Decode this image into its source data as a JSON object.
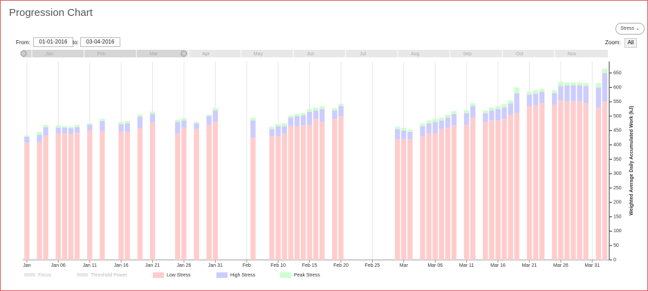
{
  "header": {
    "title": "Progression Chart",
    "menu": "Stress"
  },
  "controls": {
    "from_label": "From:",
    "from": "01-01-2016",
    "to_label": "to:",
    "to": "03-04-2016",
    "zoom_label": "Zoom:",
    "zoom": "All"
  },
  "navigator": {
    "labels": [
      "Jan",
      "Feb",
      "Mar",
      "Apr",
      "May",
      "Jun",
      "Jul",
      "Aug",
      "Sep",
      "Oct",
      "Nov"
    ]
  },
  "chart_data": {
    "type": "bar",
    "stacked": true,
    "y_label": "Weighted Average Daily Accumulated Work (kJ)",
    "x": [
      1,
      3,
      4,
      6,
      7,
      8,
      9,
      11,
      13,
      16,
      17,
      19,
      21,
      25,
      26,
      28,
      30,
      31,
      37,
      40,
      41,
      42,
      43,
      44,
      45,
      46,
      47,
      48,
      50,
      51,
      60,
      61,
      62,
      64,
      65,
      66,
      67,
      68,
      69,
      71,
      72,
      74,
      75,
      76,
      77,
      78,
      79,
      81,
      82,
      83,
      85,
      86,
      87,
      88,
      89,
      90,
      92,
      93
    ],
    "series": [
      {
        "name": "Low Stress",
        "color": "#ffcccc",
        "values": [
          408,
          410,
          432,
          440,
          440,
          438,
          442,
          450,
          448,
          447,
          445,
          458,
          478,
          440,
          460,
          455,
          470,
          480,
          425,
          430,
          430,
          440,
          465,
          465,
          468,
          470,
          490,
          480,
          490,
          500,
          420,
          420,
          420,
          430,
          440,
          440,
          455,
          460,
          468,
          470,
          495,
          480,
          485,
          485,
          490,
          505,
          510,
          535,
          538,
          545,
          540,
          555,
          552,
          552,
          552,
          545,
          530,
          550
        ]
      },
      {
        "name": "High Stress",
        "color": "#ccccff",
        "values": [
          20,
          25,
          30,
          20,
          20,
          20,
          20,
          20,
          35,
          25,
          30,
          40,
          30,
          40,
          25,
          20,
          30,
          40,
          60,
          25,
          35,
          25,
          30,
          35,
          35,
          45,
          30,
          45,
          30,
          35,
          35,
          30,
          25,
          35,
          35,
          40,
          30,
          35,
          40,
          40,
          40,
          30,
          35,
          40,
          40,
          40,
          70,
          40,
          40,
          40,
          40,
          50,
          55,
          55,
          55,
          60,
          70,
          100
        ]
      },
      {
        "name": "Peak Stress",
        "color": "#ccffcc",
        "values": [
          5,
          10,
          8,
          8,
          5,
          5,
          8,
          5,
          8,
          8,
          8,
          8,
          8,
          8,
          8,
          5,
          5,
          8,
          10,
          8,
          8,
          10,
          8,
          8,
          8,
          10,
          10,
          10,
          8,
          8,
          8,
          10,
          8,
          10,
          10,
          10,
          10,
          10,
          10,
          10,
          10,
          10,
          10,
          10,
          12,
          10,
          20,
          10,
          12,
          10,
          10,
          15,
          10,
          10,
          10,
          10,
          15,
          15
        ]
      }
    ],
    "hidden_series": [
      "Focus",
      "Threshold Power"
    ],
    "xlim": [
      0.35,
      93.5
    ],
    "xticks": [
      {
        "value": 1,
        "label": "Jan"
      },
      {
        "value": 6,
        "label": "Jan 06"
      },
      {
        "value": 11,
        "label": "Jan 11"
      },
      {
        "value": 16,
        "label": "Jan 16"
      },
      {
        "value": 21,
        "label": "Jan 21"
      },
      {
        "value": 26,
        "label": "Jan 26"
      },
      {
        "value": 31,
        "label": "Jan 31"
      },
      {
        "value": 36,
        "label": "Feb"
      },
      {
        "value": 41,
        "label": "Feb 10"
      },
      {
        "value": 46,
        "label": "Feb 15"
      },
      {
        "value": 51,
        "label": "Feb 20"
      },
      {
        "value": 56,
        "label": "Feb 25"
      },
      {
        "value": 61,
        "label": "Mar"
      },
      {
        "value": 66,
        "label": "Mar 06"
      },
      {
        "value": 71,
        "label": "Mar 11"
      },
      {
        "value": 76,
        "label": "Mar 16"
      },
      {
        "value": 81,
        "label": "Mar 21"
      },
      {
        "value": 86,
        "label": "Mar 26"
      },
      {
        "value": 91,
        "label": "Mar 31"
      }
    ],
    "ylim": [
      0,
      690
    ],
    "yticks": [
      0,
      50,
      100,
      150,
      200,
      250,
      300,
      350,
      400,
      450,
      500,
      550,
      600,
      650
    ],
    "grid": true
  }
}
